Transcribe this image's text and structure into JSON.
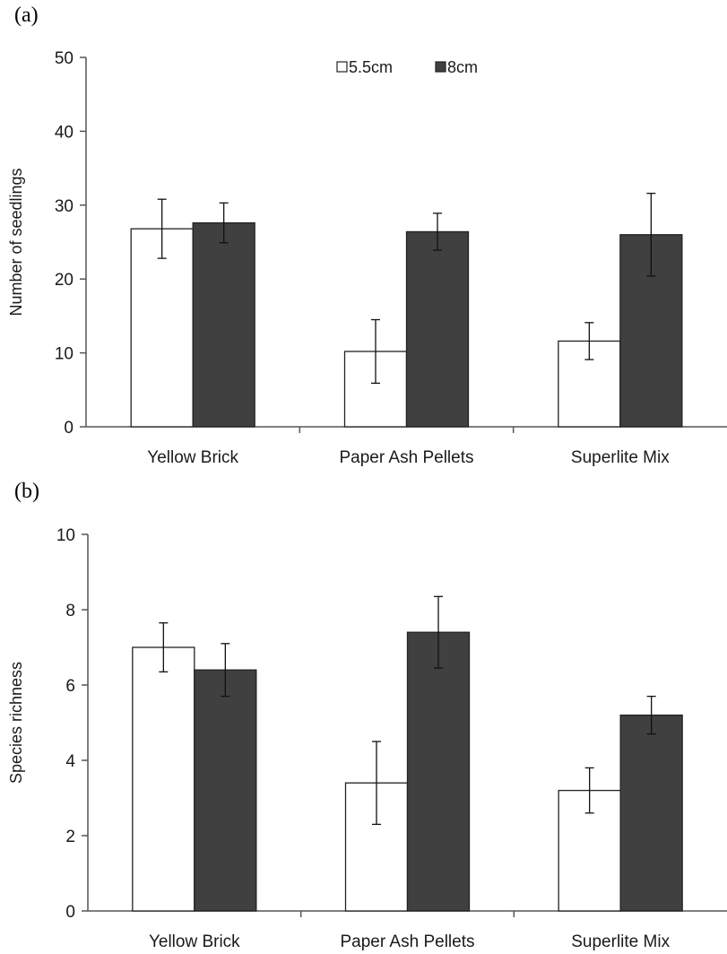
{
  "colors": {
    "series_light": "#ffffff",
    "series_dark": "#404040",
    "axis": "#555555",
    "outline": "#222222"
  },
  "chart_data": [
    {
      "panel_label": "(a)",
      "type": "bar",
      "title": "",
      "xlabel": "",
      "ylabel": "Number of seedlings",
      "ylim": [
        0,
        50
      ],
      "yticks": [
        0,
        10,
        20,
        30,
        40,
        50
      ],
      "grid": false,
      "legend": "top-center",
      "categories": [
        "Yellow Brick",
        "Paper Ash Pellets",
        "Superlite Mix"
      ],
      "series": [
        {
          "name": "5.5cm",
          "color": "#ffffff",
          "values": [
            26.8,
            10.2,
            11.6
          ],
          "errors": [
            4.0,
            4.3,
            2.5
          ]
        },
        {
          "name": "8cm",
          "color": "#404040",
          "values": [
            27.6,
            26.4,
            26.0
          ],
          "errors": [
            2.7,
            2.5,
            5.6
          ]
        }
      ]
    },
    {
      "panel_label": "(b)",
      "type": "bar",
      "title": "",
      "xlabel": "",
      "ylabel": "Species richness",
      "ylim": [
        0,
        10
      ],
      "yticks": [
        0,
        2,
        4,
        6,
        8,
        10
      ],
      "grid": false,
      "legend": "",
      "categories": [
        "Yellow Brick",
        "Paper Ash Pellets",
        "Superlite Mix"
      ],
      "series": [
        {
          "name": "5.5cm",
          "color": "#ffffff",
          "values": [
            7.0,
            3.4,
            3.2
          ],
          "errors": [
            0.65,
            1.1,
            0.6
          ]
        },
        {
          "name": "8cm",
          "color": "#404040",
          "values": [
            6.4,
            7.4,
            5.2
          ],
          "errors": [
            0.7,
            0.95,
            0.5
          ]
        }
      ]
    }
  ]
}
